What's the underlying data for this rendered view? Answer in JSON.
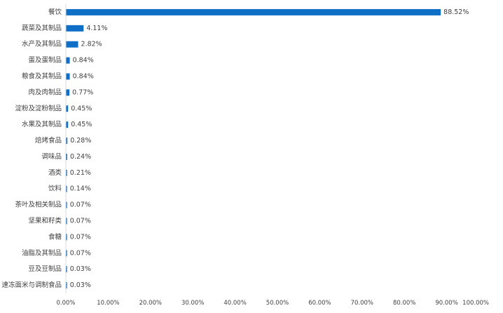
{
  "chart_data": {
    "type": "bar",
    "orientation": "horizontal",
    "categories": [
      "餐饮",
      "蔬菜及其制品",
      "水产及其制品",
      "蛋及蛋制品",
      "粮食及其制品",
      "肉及肉制品",
      "淀粉及淀粉制品",
      "水果及其制品",
      "焙烤食品",
      "调味品",
      "酒类",
      "饮料",
      "茶叶及相关制品",
      "坚果和籽类",
      "食糖",
      "油脂及其制品",
      "豆及豆制品",
      "速冻面米与调制食品"
    ],
    "values": [
      88.52,
      4.11,
      2.82,
      0.84,
      0.84,
      0.77,
      0.45,
      0.45,
      0.28,
      0.24,
      0.21,
      0.14,
      0.07,
      0.07,
      0.07,
      0.07,
      0.03,
      0.03
    ],
    "value_labels": [
      "88.52%",
      "4.11%",
      "2.82%",
      "0.84%",
      "0.84%",
      "0.77%",
      "0.45%",
      "0.45%",
      "0.28%",
      "0.24%",
      "0.21%",
      "0.14%",
      "0.07%",
      "0.07%",
      "0.07%",
      "0.07%",
      "0.03%",
      "0.03%"
    ],
    "x_ticks": [
      "0.00%",
      "10.00%",
      "20.00%",
      "30.00%",
      "40.00%",
      "50.00%",
      "60.00%",
      "70.00%",
      "80.00%",
      "90.00%",
      "100.00%"
    ],
    "xlim": [
      0,
      100
    ],
    "title": "",
    "xlabel": "",
    "ylabel": "",
    "grid": false,
    "legend": "none",
    "bar_color": "#0f6fc6"
  }
}
